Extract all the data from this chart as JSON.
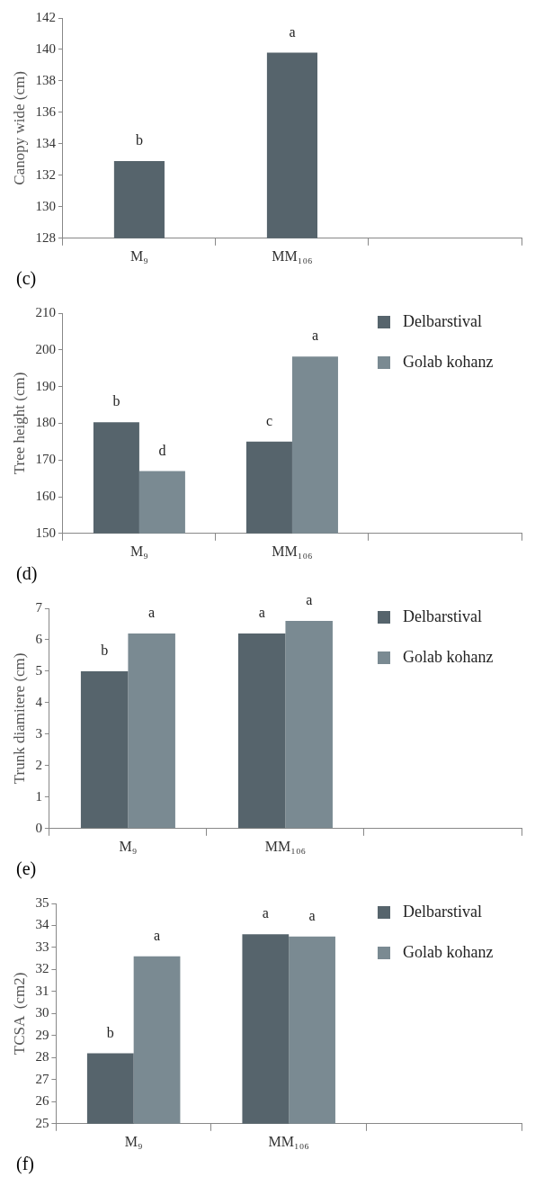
{
  "chart_data": [
    {
      "type": "bar",
      "ylabel": "Canopy wide (cm)",
      "categories": [
        "M₉",
        "MM₁₀₆",
        null
      ],
      "ylim": [
        128,
        142
      ],
      "yticks": [
        128,
        130,
        132,
        134,
        136,
        138,
        140,
        142
      ],
      "annotations": [
        "(c)"
      ],
      "series": [
        {
          "color": "#56646c",
          "values": [
            132.9,
            139.8,
            null
          ],
          "value_labels": [
            "b",
            "a",
            null
          ]
        }
      ]
    },
    {
      "type": "bar",
      "ylabel": "Tree height (cm)",
      "categories": [
        "M₉",
        "MM₁₀₆",
        null
      ],
      "ylim": [
        150,
        210
      ],
      "yticks": [
        150,
        160,
        170,
        180,
        190,
        200,
        210
      ],
      "legend": "top right",
      "annotations": [
        "(d)"
      ],
      "series": [
        {
          "name": "Delbarstival",
          "color": "#56646c",
          "values": [
            180.3,
            175,
            null
          ],
          "value_labels": [
            "b",
            "c",
            null
          ]
        },
        {
          "name": "Golab kohanz",
          "color": "#7a8a92",
          "values": [
            167,
            198.2,
            null
          ],
          "value_labels": [
            "d",
            "a",
            null
          ]
        }
      ]
    },
    {
      "type": "bar",
      "ylabel": "Trunk diamitere (cm)",
      "categories": [
        "M₉",
        "MM₁₀₆",
        null
      ],
      "ylim": [
        0,
        7
      ],
      "yticks": [
        0,
        1,
        2,
        3,
        4,
        5,
        6,
        7
      ],
      "legend": "top right",
      "annotations": [
        "(e)"
      ],
      "series": [
        {
          "name": "Delbarstival",
          "color": "#56646c",
          "values": [
            5.0,
            6.2,
            null
          ],
          "value_labels": [
            "b",
            "a",
            null
          ]
        },
        {
          "name": "Golab kohanz",
          "color": "#7a8a92",
          "values": [
            6.2,
            6.6,
            null
          ],
          "value_labels": [
            "a",
            "a",
            null
          ]
        }
      ]
    },
    {
      "type": "bar",
      "ylabel": "TCSA  (cm2)",
      "categories": [
        "M₉",
        "MM₁₀₆",
        null
      ],
      "ylim": [
        25,
        35
      ],
      "yticks": [
        25,
        26,
        27,
        28,
        29,
        30,
        31,
        32,
        33,
        34,
        35
      ],
      "legend": "top right",
      "annotations": [
        "(f)"
      ],
      "series": [
        {
          "name": "Delbarstival",
          "color": "#56646c",
          "values": [
            28.2,
            33.6,
            null
          ],
          "value_labels": [
            "b",
            "a",
            null
          ]
        },
        {
          "name": "Golab kohanz",
          "color": "#7a8a92",
          "values": [
            32.6,
            33.5,
            null
          ],
          "value_labels": [
            "a",
            "a",
            null
          ]
        }
      ]
    }
  ]
}
